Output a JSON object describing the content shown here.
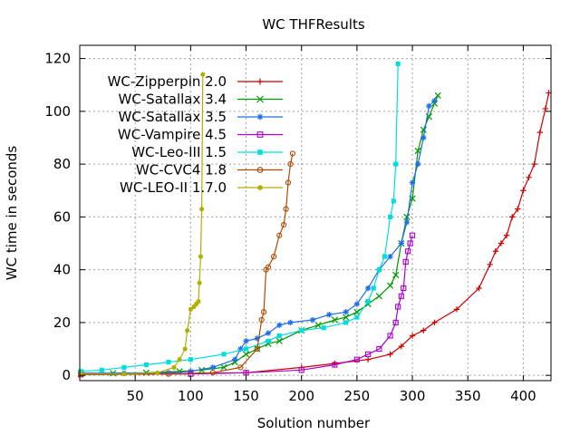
{
  "chart_data": {
    "type": "line",
    "title": "WC THFResults",
    "xlabel": "Solution number",
    "ylabel": "WC time in seconds",
    "xlim": [
      0,
      425
    ],
    "ylim": [
      -2,
      125
    ],
    "xticks": [
      50,
      100,
      150,
      200,
      250,
      300,
      350,
      400
    ],
    "yticks": [
      0,
      20,
      40,
      60,
      80,
      100,
      120
    ],
    "grid": true,
    "legend": "top-left",
    "series": [
      {
        "name": "WC-Zipperpin 2.0",
        "color": "#cc0000",
        "marker": "plus",
        "x": [
          1,
          150,
          200,
          230,
          260,
          280,
          290,
          300,
          310,
          320,
          340,
          360,
          370,
          375,
          380,
          385,
          390,
          395,
          400,
          405,
          410,
          415,
          420,
          423
        ],
        "y": [
          0.3,
          1,
          3,
          4.5,
          6,
          8,
          11,
          15,
          17,
          20,
          25,
          33,
          42,
          47,
          50,
          53,
          60,
          63,
          70,
          75,
          80,
          92,
          101,
          107
        ]
      },
      {
        "name": "WC-Satallax 3.4",
        "color": "#009900",
        "marker": "x",
        "x": [
          1,
          30,
          60,
          90,
          110,
          130,
          140,
          150,
          160,
          170,
          180,
          200,
          215,
          230,
          240,
          250,
          260,
          270,
          280,
          285,
          290,
          295,
          300,
          305,
          310,
          315,
          320,
          323
        ],
        "y": [
          0.8,
          0.8,
          1,
          1.5,
          2,
          3,
          5,
          8,
          10,
          12,
          13,
          17,
          19,
          21,
          22,
          24,
          27,
          30,
          34,
          38,
          50,
          60,
          67,
          85,
          93,
          98,
          103,
          106
        ]
      },
      {
        "name": "WC-Satallax 3.5",
        "color": "#1e6ee6",
        "marker": "star",
        "x": [
          1,
          40,
          80,
          100,
          120,
          140,
          145,
          150,
          160,
          170,
          180,
          190,
          210,
          225,
          240,
          250,
          260,
          270,
          280,
          290,
          295,
          300,
          305,
          310,
          315,
          320
        ],
        "y": [
          0.8,
          0.8,
          1,
          1.5,
          3,
          6,
          10,
          13,
          14,
          16,
          19,
          20,
          21,
          23,
          24,
          27,
          33,
          40,
          45,
          50,
          58,
          73,
          80,
          90,
          102,
          104
        ]
      },
      {
        "name": "WC-Vampire 4.5",
        "color": "#aa00cc",
        "marker": "square",
        "x": [
          1,
          100,
          150,
          200,
          230,
          250,
          260,
          270,
          280,
          285,
          287,
          290,
          292,
          294,
          296,
          298,
          300
        ],
        "y": [
          0.3,
          0.5,
          1,
          2,
          4,
          6,
          8,
          10,
          15,
          20,
          26,
          30,
          33,
          43,
          47,
          50,
          53
        ]
      },
      {
        "name": "WC-Leo-III 1.5",
        "color": "#00dddd",
        "marker": "filled-square",
        "x": [
          1,
          20,
          40,
          60,
          80,
          100,
          130,
          150,
          170,
          180,
          200,
          220,
          240,
          250,
          260,
          265,
          270,
          275,
          280,
          283,
          285,
          287
        ],
        "y": [
          1.5,
          2,
          3,
          4,
          5,
          6,
          8,
          10,
          13,
          15,
          17,
          18,
          20,
          22,
          28,
          33,
          40,
          45,
          60,
          66,
          80,
          118
        ]
      },
      {
        "name": "WC-CVC4 1.8",
        "color": "#b04a00",
        "marker": "circle",
        "x": [
          1,
          80,
          120,
          145,
          160,
          164,
          166,
          168,
          170,
          175,
          180,
          184,
          186,
          188,
          190,
          192
        ],
        "y": [
          0.3,
          0.5,
          1,
          3,
          10,
          21,
          24,
          40,
          41,
          45,
          53,
          57,
          63,
          73,
          80,
          84
        ]
      },
      {
        "name": "WC-LEO-II 1.7.0",
        "color": "#b0b000",
        "marker": "filled-circle",
        "x": [
          1,
          40,
          70,
          85,
          90,
          95,
          97,
          100,
          103,
          105,
          107,
          108,
          109,
          110,
          111
        ],
        "y": [
          0.5,
          0.5,
          1,
          3,
          6,
          10,
          17,
          25,
          26,
          27,
          28,
          35,
          45,
          63,
          114
        ]
      }
    ]
  }
}
